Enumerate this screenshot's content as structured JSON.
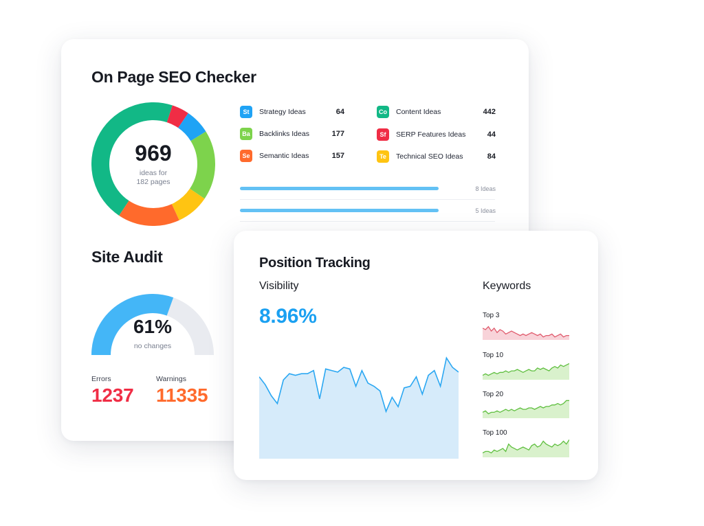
{
  "seo": {
    "title": "On Page SEO Checker",
    "donut": {
      "total": "969",
      "sub1": "ideas for",
      "sub2": "182 pages",
      "segments": [
        {
          "name": "Content",
          "color": "#12b886",
          "value": 442
        },
        {
          "name": "SERP Features",
          "color": "#f02d45",
          "value": 44
        },
        {
          "name": "Strategy",
          "color": "#1fa3f5",
          "value": 64
        },
        {
          "name": "Backlinks",
          "color": "#7dd34c",
          "value": 177
        },
        {
          "name": "Technical SEO",
          "color": "#ffc412",
          "value": 84
        },
        {
          "name": "Semantic",
          "color": "#ff6a2c",
          "value": 157
        }
      ]
    },
    "legend": [
      {
        "abbr": "St",
        "label": "Strategy Ideas",
        "value": "64",
        "color": "#1fa3f5"
      },
      {
        "abbr": "Ba",
        "label": "Backlinks Ideas",
        "value": "177",
        "color": "#7dd34c"
      },
      {
        "abbr": "Se",
        "label": "Semantic Ideas",
        "value": "157",
        "color": "#ff6a2c"
      },
      {
        "abbr": "Co",
        "label": "Content Ideas",
        "value": "442",
        "color": "#12b886"
      },
      {
        "abbr": "Sf",
        "label": "SERP Features Ideas",
        "value": "44",
        "color": "#f02d45"
      },
      {
        "abbr": "Te",
        "label": "Technical SEO Ideas",
        "value": "84",
        "color": "#ffc412"
      }
    ],
    "ideas_rows": [
      {
        "label": "8 Ideas"
      },
      {
        "label": "5 Ideas"
      }
    ]
  },
  "audit": {
    "title": "Site Audit",
    "percent": "61%",
    "percent_value": 0.61,
    "sub": "no changes",
    "errors_label": "Errors",
    "errors_value": "1237",
    "warnings_label": "Warnings",
    "warnings_value": "11335",
    "gauge_color": "#44b6f7",
    "gauge_track": "#e9ebf0",
    "errors_color": "#f02d45",
    "warnings_color": "#ff6a2c"
  },
  "tracking": {
    "title": "Position Tracking",
    "visibility_label": "Visibility",
    "visibility_value": "8.96%",
    "keywords_label": "Keywords",
    "visibility_series": [
      52,
      47,
      40,
      35,
      50,
      54,
      53,
      54,
      54,
      56,
      38,
      57,
      56,
      55,
      58,
      57,
      46,
      56,
      48,
      46,
      43,
      30,
      39,
      33,
      45,
      46,
      52,
      41,
      53,
      56,
      46,
      64,
      58,
      55
    ],
    "keywords": [
      {
        "label": "Top 3",
        "color": "#e05a6c",
        "fill": "#f8d3d9",
        "series": [
          8,
          7,
          9,
          6,
          8,
          5,
          7,
          6,
          4,
          5,
          6,
          5,
          4,
          3,
          4,
          3,
          4,
          5,
          4,
          3,
          4,
          2,
          3,
          3,
          4,
          2,
          3,
          4,
          2,
          3,
          3
        ]
      },
      {
        "label": "Top 10",
        "color": "#5fbf3f",
        "fill": "#d9f1cc",
        "series": [
          3,
          4,
          3,
          4,
          5,
          4,
          5,
          5,
          6,
          5,
          6,
          6,
          7,
          6,
          5,
          6,
          7,
          6,
          6,
          8,
          7,
          8,
          7,
          6,
          8,
          9,
          8,
          10,
          9,
          10,
          11
        ]
      },
      {
        "label": "Top 20",
        "color": "#5fbf3f",
        "fill": "#d9f1cc",
        "series": [
          4,
          5,
          3,
          4,
          4,
          5,
          4,
          5,
          6,
          5,
          6,
          5,
          6,
          7,
          6,
          6,
          7,
          7,
          6,
          7,
          8,
          7,
          8,
          8,
          9,
          9,
          10,
          9,
          10,
          12,
          12
        ]
      },
      {
        "label": "Top 100",
        "color": "#5fbf3f",
        "fill": "#d9f1cc",
        "series": [
          3,
          4,
          4,
          3,
          5,
          4,
          5,
          6,
          4,
          9,
          7,
          6,
          5,
          6,
          7,
          6,
          5,
          8,
          9,
          7,
          8,
          11,
          9,
          8,
          7,
          9,
          8,
          9,
          11,
          9,
          12
        ]
      }
    ]
  }
}
